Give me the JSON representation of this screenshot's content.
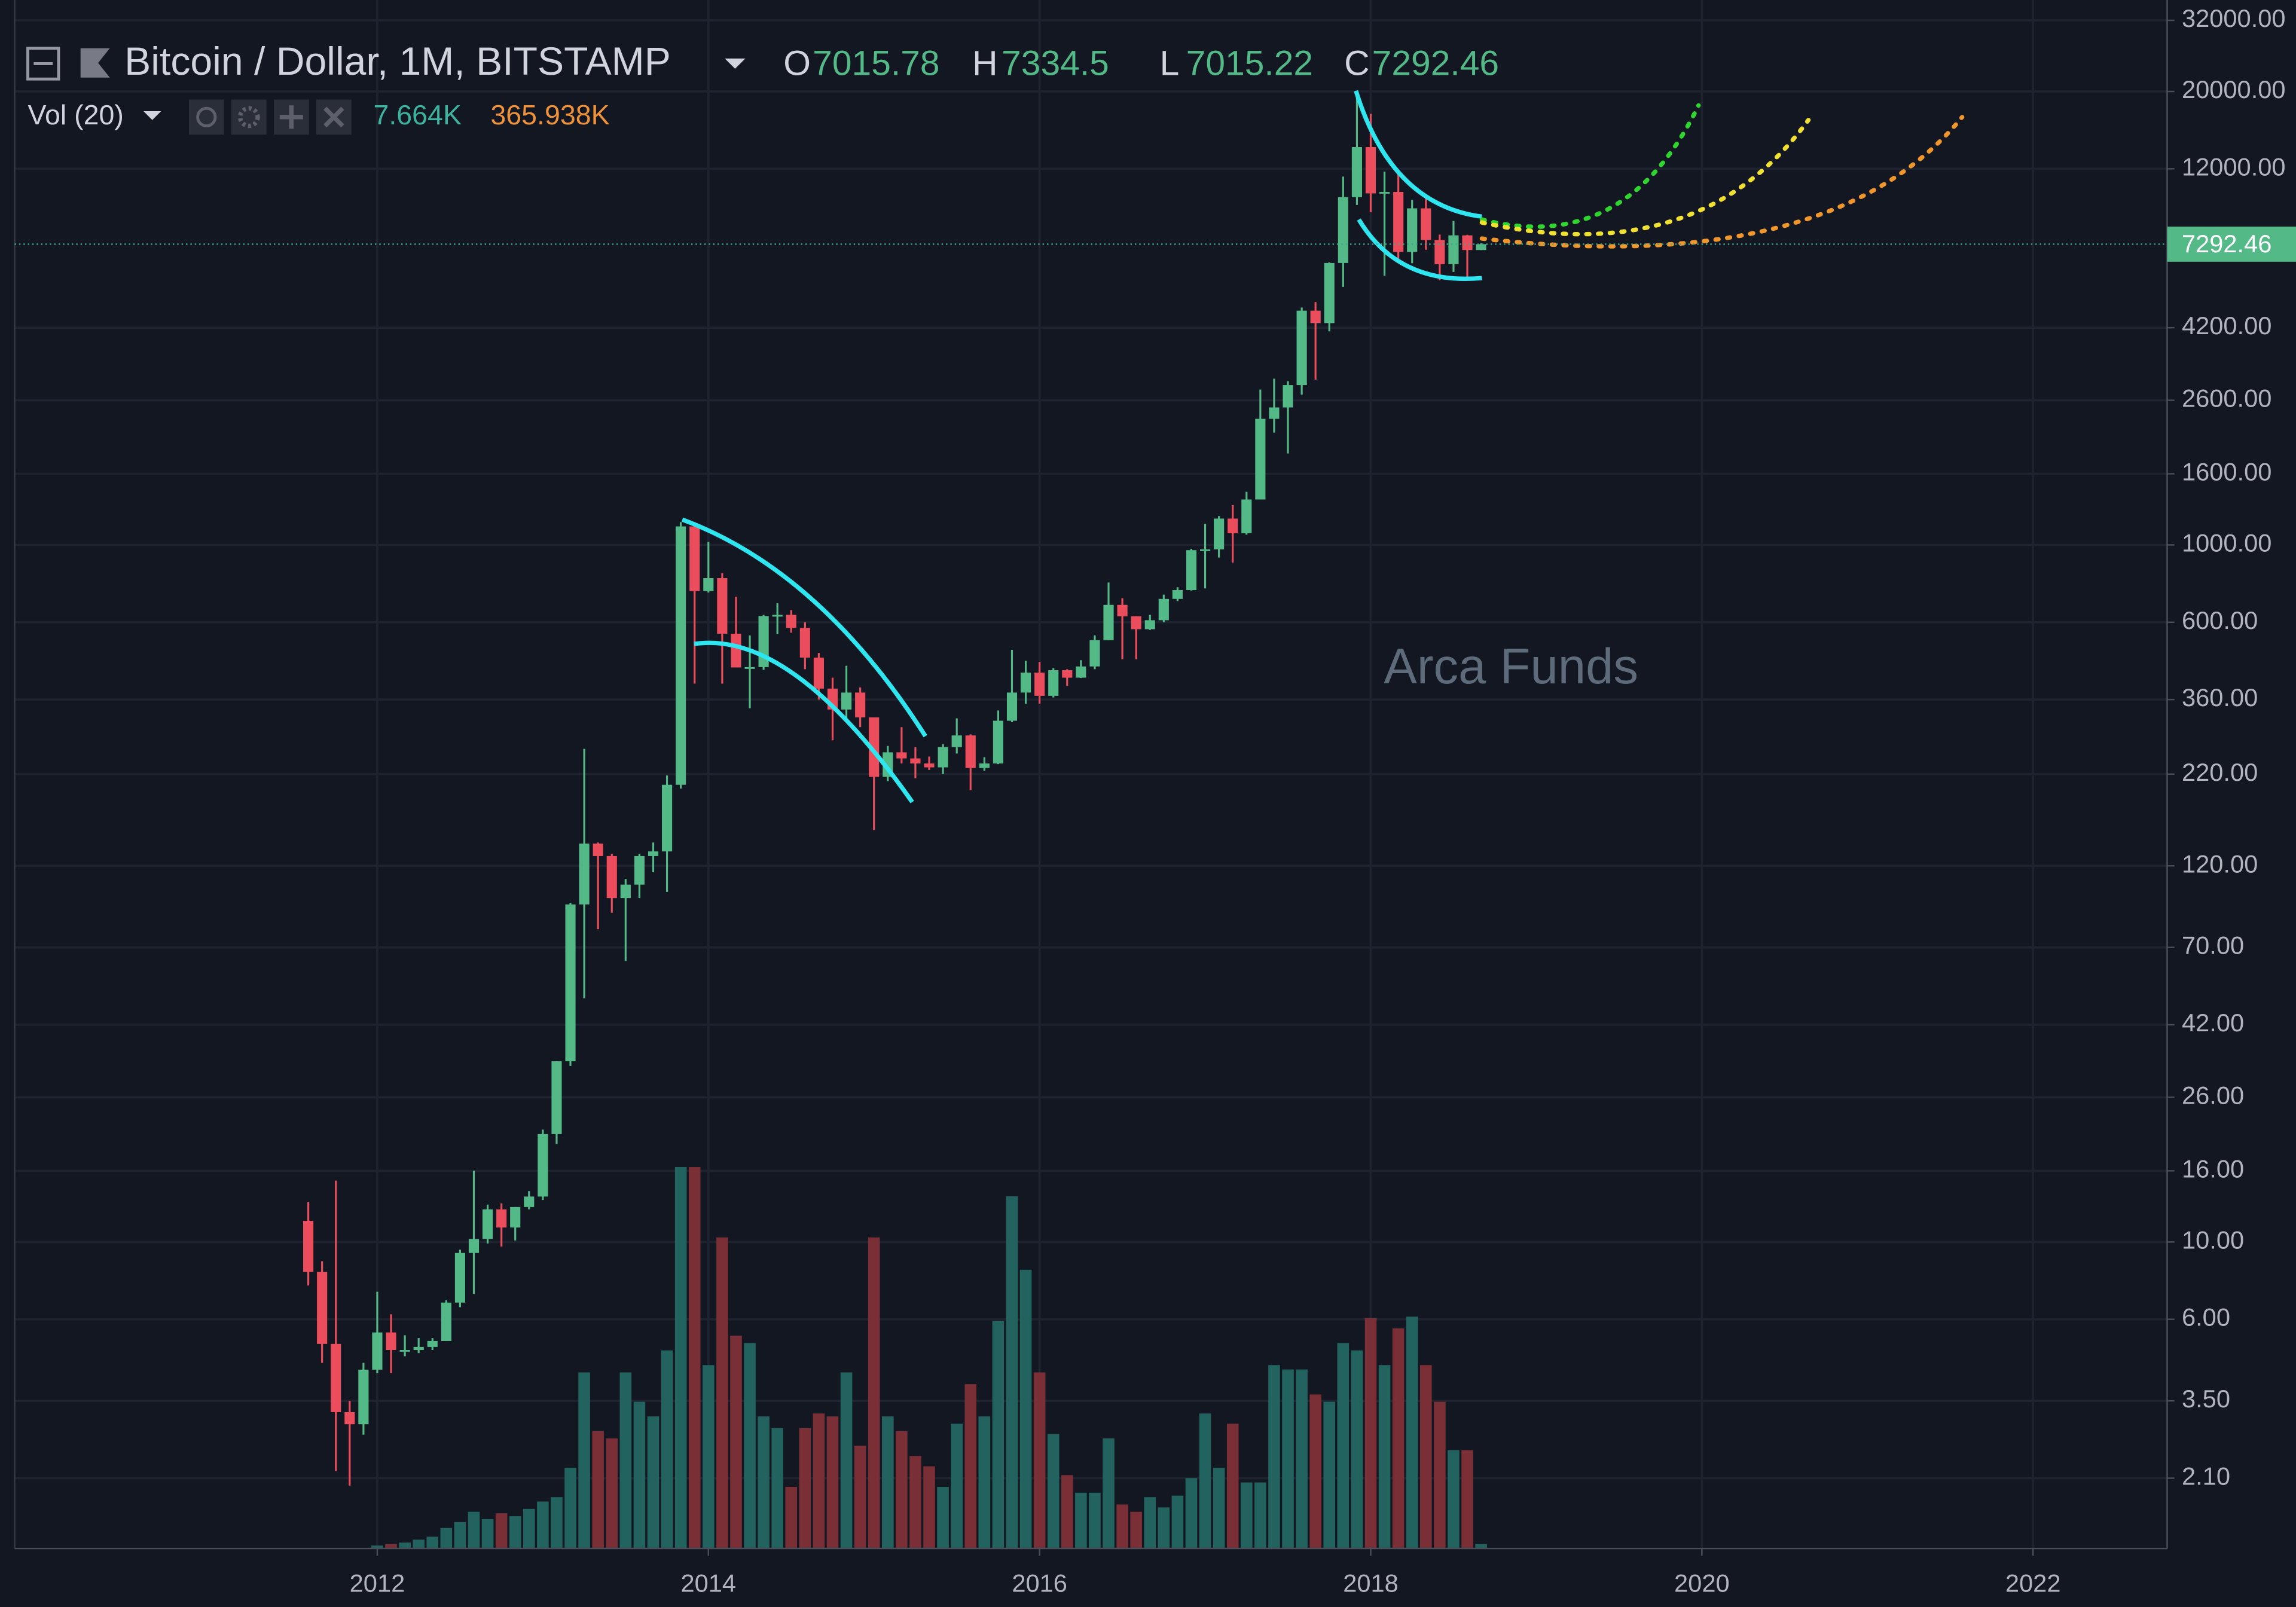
{
  "chart_data": {
    "type": "candlestick",
    "title": "Bitcoin / Dollar, 1M, BITSTAMP",
    "ohlc_letters": [
      "O",
      "H",
      "L",
      "C"
    ],
    "watermark": "Arca Funds",
    "log_scale": true,
    "grid": true,
    "up_color": "#53b987",
    "down_color": "#eb4d5c",
    "x": [
      "2011-08",
      "2011-09",
      "2011-10",
      "2011-11",
      "2011-12",
      "2012-01",
      "2012-02",
      "2012-03",
      "2012-04",
      "2012-05",
      "2012-06",
      "2012-07",
      "2012-08",
      "2012-09",
      "2012-10",
      "2012-11",
      "2012-12",
      "2013-01",
      "2013-02",
      "2013-03",
      "2013-04",
      "2013-05",
      "2013-06",
      "2013-07",
      "2013-08",
      "2013-09",
      "2013-10",
      "2013-11",
      "2013-12",
      "2014-01",
      "2014-02",
      "2014-03",
      "2014-04",
      "2014-05",
      "2014-06",
      "2014-07",
      "2014-08",
      "2014-09",
      "2014-10",
      "2014-11",
      "2014-12",
      "2015-01",
      "2015-02",
      "2015-03",
      "2015-04",
      "2015-05",
      "2015-06",
      "2015-07",
      "2015-08",
      "2015-09",
      "2015-10",
      "2015-11",
      "2015-12",
      "2016-01",
      "2016-02",
      "2016-03",
      "2016-04",
      "2016-05",
      "2016-06",
      "2016-07",
      "2016-08",
      "2016-09",
      "2016-10",
      "2016-11",
      "2016-12",
      "2017-01",
      "2017-02",
      "2017-03",
      "2017-04",
      "2017-05",
      "2017-06",
      "2017-07",
      "2017-08",
      "2017-09",
      "2017-10",
      "2017-11",
      "2017-12",
      "2018-01",
      "2018-02",
      "2018-03",
      "2018-04",
      "2018-05",
      "2018-06",
      "2018-07",
      "2018-08",
      "2018-09"
    ],
    "open": [
      11.5,
      8.2,
      5.1,
      3.25,
      3.0,
      4.3,
      5.5,
      4.9,
      4.9,
      5.0,
      5.2,
      6.7,
      9.3,
      10.2,
      12.4,
      11.0,
      12.6,
      13.5,
      20.4,
      33,
      93,
      139,
      128,
      97,
      106,
      128,
      132,
      205,
      1130,
      737,
      803,
      556,
      445,
      446,
      625,
      630,
      578,
      475,
      387,
      337,
      377,
      320,
      216,
      254,
      244,
      236,
      230,
      263,
      284,
      229,
      236,
      313,
      377,
      430,
      369,
      437,
      416,
      448,
      533,
      673,
      624,
      573,
      608,
      700,
      742,
      966,
      971,
      1190,
      1080,
      1350,
      2300,
      2480,
      2875,
      4700,
      4330,
      6440,
      9950,
      13850,
      10200,
      10300,
      6930,
      9240,
      7500,
      6390,
      7730,
      7015.78
    ],
    "high": [
      13,
      8.8,
      15,
      3.5,
      4.5,
      7.2,
      6.2,
      5.4,
      5.3,
      5.3,
      6.8,
      9.5,
      16,
      12.8,
      12.9,
      12.6,
      14,
      21,
      33,
      94,
      260,
      140,
      130,
      110,
      130,
      140,
      218,
      1163,
      1163,
      1020,
      830,
      710,
      550,
      630,
      680,
      650,
      600,
      490,
      416,
      450,
      390,
      320,
      265,
      300,
      263,
      247,
      268,
      318,
      286,
      246,
      335,
      500,
      465,
      462,
      443,
      440,
      467,
      550,
      780,
      703,
      625,
      630,
      720,
      756,
      975,
      1150,
      1210,
      1300,
      1420,
      2790,
      3000,
      2950,
      4800,
      4975,
      6470,
      11400,
      19666,
      17250,
      11780,
      11700,
      9770,
      9990,
      7770,
      8500,
      7760,
      7334.5
    ],
    "low": [
      7.5,
      4.5,
      2.2,
      2.0,
      2.8,
      4.2,
      4.2,
      4.7,
      4.8,
      4.9,
      5.2,
      6.5,
      7.1,
      9.9,
      9.7,
      10.1,
      12.4,
      13.2,
      19.1,
      32,
      50,
      79,
      88,
      64,
      97,
      115,
      101,
      200,
      400,
      730,
      400,
      450,
      340,
      438,
      555,
      560,
      440,
      360,
      275,
      316,
      300,
      152,
      210,
      236,
      214,
      226,
      220,
      252,
      198,
      225,
      235,
      310,
      350,
      350,
      365,
      394,
      415,
      440,
      533,
      470,
      470,
      570,
      600,
      690,
      740,
      750,
      920,
      890,
      1070,
      1350,
      2100,
      1830,
      2700,
      2980,
      4100,
      5500,
      9450,
      9000,
      5920,
      6600,
      6430,
      7030,
      5750,
      6070,
      5880,
      7015.22
    ],
    "close": [
      8.2,
      5.1,
      3.25,
      3.0,
      4.3,
      5.5,
      4.9,
      4.9,
      5.0,
      5.2,
      6.7,
      9.3,
      10.2,
      12.4,
      11.0,
      12.6,
      13.5,
      20.4,
      33,
      93,
      139,
      128,
      97,
      106,
      128,
      132,
      205,
      1130,
      737,
      803,
      556,
      445,
      446,
      625,
      630,
      578,
      475,
      387,
      337,
      377,
      320,
      216,
      254,
      244,
      236,
      230,
      263,
      284,
      229,
      236,
      313,
      377,
      430,
      369,
      437,
      416,
      448,
      533,
      673,
      624,
      573,
      608,
      700,
      742,
      966,
      971,
      1190,
      1080,
      1350,
      2300,
      2480,
      2875,
      4700,
      4330,
      6440,
      9950,
      13850,
      10200,
      10300,
      6930,
      9240,
      7500,
      6390,
      7730,
      7015.78,
      7292.46
    ],
    "volume": {
      "name": "Vol (20)",
      "ma_label": "7.664K",
      "last_label": "365.938K",
      "up_color": "#22635f",
      "down_color": "#7a2e35",
      "ylim": [
        0,
        40000000
      ],
      "values": [
        50000,
        50000,
        50000,
        50000,
        50000,
        246000,
        369000,
        492000,
        738000,
        984000,
        1722000,
        2214000,
        3075000,
        2460000,
        2952000,
        2706000,
        3321000,
        3936000,
        4305000,
        6765000,
        14760000,
        9840000,
        9225000,
        14760000,
        12300000,
        11070000,
        16605000,
        31980000,
        31980000,
        15375000,
        26076000,
        17835000,
        17220000,
        11070000,
        10086000,
        5166000,
        10086000,
        11316000,
        11070000,
        14760000,
        8610000,
        26076000,
        11070000,
        9840000,
        7749000,
        6888000,
        5166000,
        10455000,
        13776000,
        11070000,
        19065000,
        29520000,
        23370000,
        14760000,
        9594000,
        6150000,
        4674000,
        4674000,
        9225000,
        3690000,
        3075000,
        4305000,
        3444000,
        4428000,
        5904000,
        11316000,
        6765000,
        10455000,
        5535000,
        5535000,
        15375000,
        15006000,
        15006000,
        12915000,
        12300000,
        17220000,
        16605000,
        19311000,
        15375000,
        18450000,
        19434000,
        15375000,
        12300000,
        8241000,
        8241000,
        365938
      ]
    },
    "xlim": [
      2009.81,
      2022.81
    ],
    "xticks": [
      2012,
      2014,
      2016,
      2018,
      2020,
      2022
    ],
    "ylim": [
      1.32,
      36600
    ],
    "yticks": [
      {
        "value": 2.1,
        "label": "2.10"
      },
      {
        "value": 3.5,
        "label": "3.50"
      },
      {
        "value": 6,
        "label": "6.00"
      },
      {
        "value": 10,
        "label": "10.00"
      },
      {
        "value": 16,
        "label": "16.00"
      },
      {
        "value": 26,
        "label": "26.00"
      },
      {
        "value": 42,
        "label": "42.00"
      },
      {
        "value": 70,
        "label": "70.00"
      },
      {
        "value": 120,
        "label": "120.00"
      },
      {
        "value": 220,
        "label": "220.00"
      },
      {
        "value": 360,
        "label": "360.00"
      },
      {
        "value": 600,
        "label": "600.00"
      },
      {
        "value": 1000,
        "label": "1000.00"
      },
      {
        "value": 1600,
        "label": "1600.00"
      },
      {
        "value": 2600,
        "label": "2600.00"
      },
      {
        "value": 4200,
        "label": "4200.00"
      },
      {
        "value": 12000,
        "label": "12000.00"
      },
      {
        "value": 20000,
        "label": "20000.00"
      },
      {
        "value": 32000,
        "label": "32000.00"
      }
    ]
  }
}
